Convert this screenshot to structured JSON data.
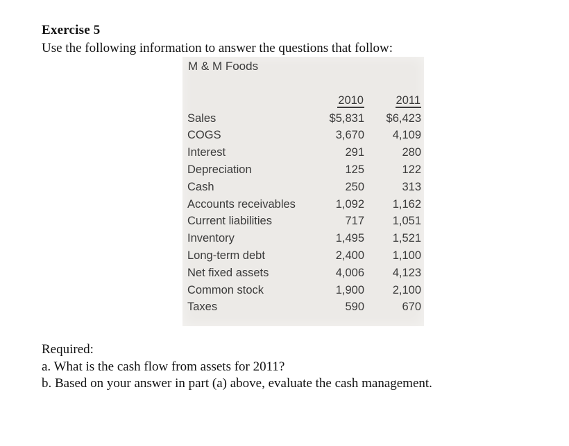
{
  "document": {
    "title": "Exercise 5",
    "intro": "Use the following information to answer the questions that follow:"
  },
  "table": {
    "company": "M & M Foods",
    "columns": [
      "2010",
      "2011"
    ],
    "rows": [
      {
        "label": "Sales",
        "y2010": "$5,831",
        "y2011": "$6,423"
      },
      {
        "label": "COGS",
        "y2010": "3,670",
        "y2011": "4,109"
      },
      {
        "label": "Interest",
        "y2010": "291",
        "y2011": "280"
      },
      {
        "label": "Depreciation",
        "y2010": "125",
        "y2011": "122"
      },
      {
        "label": "Cash",
        "y2010": "250",
        "y2011": "313"
      },
      {
        "label": "Accounts receivables",
        "y2010": "1,092",
        "y2011": "1,162"
      },
      {
        "label": "Current liabilities",
        "y2010": "717",
        "y2011": "1,051"
      },
      {
        "label": "Inventory",
        "y2010": "1,495",
        "y2011": "1,521"
      },
      {
        "label": "Long-term debt",
        "y2010": "2,400",
        "y2011": "1,100"
      },
      {
        "label": "Net fixed assets",
        "y2010": "4,006",
        "y2011": "4,123"
      },
      {
        "label": "Common stock",
        "y2010": "1,900",
        "y2011": "2,100"
      },
      {
        "label": "Taxes",
        "y2010": "590",
        "y2011": "670"
      }
    ]
  },
  "questions": {
    "required": "Required:",
    "a": "a. What is the cash flow from assets for 2011?",
    "b": "b. Based on your answer in part (a) above, evaluate the cash management."
  },
  "colors": {
    "page_background": "#ffffff",
    "panel_background": "#eceae7",
    "document_text": "#131313",
    "table_text": "#3a3a3a"
  }
}
